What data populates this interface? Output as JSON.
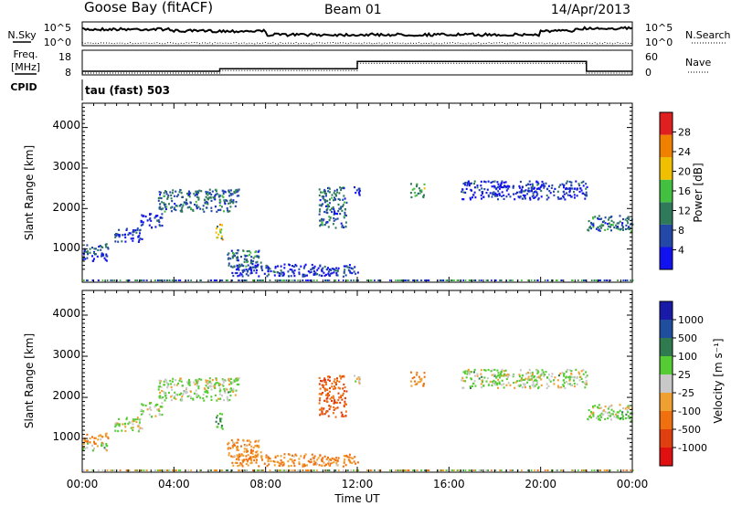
{
  "header": {
    "station": "Goose Bay (fitACF)",
    "beam": "Beam 01",
    "date": "14/Apr/2013"
  },
  "noise_panel": {
    "left_label": "N.Sky",
    "right_label": "N.Search",
    "left_ticks": [
      "10^5",
      "10^0"
    ],
    "right_ticks": [
      "10^5",
      "10^0"
    ]
  },
  "freq_panel": {
    "left_label_top": "Freq.",
    "left_label_bottom": "[MHz]",
    "cpid_label": "CPID",
    "right_label": "Nave",
    "left_ticks": [
      "18",
      "8"
    ],
    "right_ticks": [
      "60",
      "0"
    ]
  },
  "mode_label": "tau (fast) 503",
  "power_panel": {
    "ylabel": "Slant Range [km]",
    "yticks": [
      "4000",
      "3000",
      "2000",
      "1000"
    ],
    "colorbar_label": "Power [dB]",
    "colorbar_ticks": [
      "28",
      "24",
      "20",
      "16",
      "12",
      "8",
      "4"
    ],
    "colors": [
      "#1212f0",
      "#2448a8",
      "#2f7a5a",
      "#44c040",
      "#f0c000",
      "#f08000",
      "#e02020"
    ]
  },
  "velocity_panel": {
    "ylabel": "Slant Range [km]",
    "yticks": [
      "4000",
      "3000",
      "2000",
      "1000"
    ],
    "colorbar_label": "Velocity [m s⁻¹]",
    "colorbar_ticks": [
      "1000",
      "500",
      "100",
      "25",
      "-25",
      "-100",
      "-500",
      "-1000"
    ],
    "colors": [
      "#1a1aa8",
      "#1f4e9e",
      "#2f7a4e",
      "#55cc33",
      "#c8c8c8",
      "#f0a030",
      "#f07010",
      "#e04010",
      "#e01010"
    ]
  },
  "x_axis": {
    "label": "Time UT",
    "ticks": [
      "00:00",
      "04:00",
      "08:00",
      "12:00",
      "16:00",
      "20:00",
      "00:00"
    ]
  },
  "chart_data": {
    "type": "heatmap",
    "title": "Goose Bay (fitACF)  Beam 01  14/Apr/2013",
    "xlabel": "Time UT",
    "ylabel": "Slant Range [km]",
    "xlim_hours": [
      0,
      24
    ],
    "ylim_km": [
      180,
      4600
    ],
    "frequency_MHz": {
      "x_hours": [
        0,
        6,
        6,
        12,
        12,
        22,
        22,
        24
      ],
      "values": [
        9.5,
        9.5,
        10.5,
        10.5,
        13.5,
        13.5,
        9.5,
        9.5
      ]
    },
    "echo_regions": [
      {
        "t0": 0.0,
        "t1": 1.1,
        "r0": 850,
        "r1": 1100,
        "power_dB": 12,
        "velocity": -100
      },
      {
        "t0": 0.0,
        "t1": 1.1,
        "r0": 680,
        "r1": 860,
        "power_dB": 8,
        "velocity": 25
      },
      {
        "t0": 1.4,
        "t1": 2.6,
        "r0": 1150,
        "r1": 1500,
        "power_dB": 8,
        "velocity": 25
      },
      {
        "t0": 2.5,
        "t1": 3.5,
        "r0": 1500,
        "r1": 1850,
        "power_dB": 8,
        "velocity": 25
      },
      {
        "t0": 3.3,
        "t1": 6.8,
        "r0": 1900,
        "r1": 2450,
        "power_dB": 12,
        "velocity": 25
      },
      {
        "t0": 5.8,
        "t1": 6.1,
        "r0": 1200,
        "r1": 1650,
        "power_dB": 20,
        "velocity": 100
      },
      {
        "t0": 6.3,
        "t1": 7.8,
        "r0": 450,
        "r1": 950,
        "power_dB": 12,
        "velocity": -100
      },
      {
        "t0": 6.5,
        "t1": 12.0,
        "r0": 300,
        "r1": 600,
        "power_dB": 8,
        "velocity": -100
      },
      {
        "t0": 10.3,
        "t1": 11.5,
        "r0": 1500,
        "r1": 2500,
        "power_dB": 12,
        "velocity": -500
      },
      {
        "t0": 11.8,
        "t1": 12.2,
        "r0": 2300,
        "r1": 2550,
        "power_dB": 8,
        "velocity": -25
      },
      {
        "t0": 14.3,
        "t1": 14.9,
        "r0": 2250,
        "r1": 2600,
        "power_dB": 16,
        "velocity": -100
      },
      {
        "t0": 16.5,
        "t1": 22.0,
        "r0": 2200,
        "r1": 2650,
        "power_dB": 8,
        "velocity": 25
      },
      {
        "t0": 22.0,
        "t1": 24.0,
        "r0": 1400,
        "r1": 1800,
        "power_dB": 12,
        "velocity": 25
      }
    ]
  }
}
